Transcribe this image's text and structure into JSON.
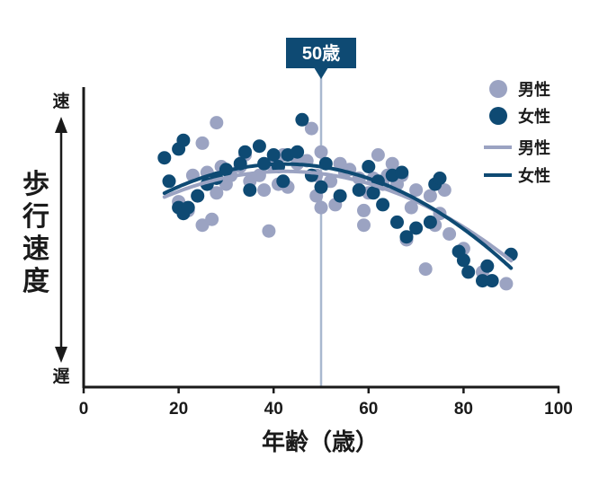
{
  "chart_data": {
    "type": "scatter",
    "xlabel": "年齢（歳）",
    "ylabel": "歩行速度",
    "y_top_label": "速",
    "y_bottom_label": "遅",
    "xlim": [
      0,
      100
    ],
    "ylim": [
      0,
      10
    ],
    "xticks": [
      "0",
      "20",
      "40",
      "60",
      "80",
      "100"
    ],
    "grid": false,
    "legend_position": "top-right",
    "annotation": {
      "label": "50歳",
      "x": 50
    },
    "colors": {
      "male": "#9ba3c2",
      "female": "#0e4a73",
      "annotation": "#0e4a73",
      "vline": "#a9b8cf",
      "axis": "#1a1a1a"
    },
    "series": [
      {
        "name": "男性",
        "kind": "points",
        "points": [
          [
            20,
            6.3
          ],
          [
            22,
            6.0
          ],
          [
            23,
            7.2
          ],
          [
            24,
            6.5
          ],
          [
            25,
            5.5
          ],
          [
            25,
            8.3
          ],
          [
            26,
            7.3
          ],
          [
            27,
            5.7
          ],
          [
            28,
            9.0
          ],
          [
            28,
            6.6
          ],
          [
            29,
            7.5
          ],
          [
            30,
            6.9
          ],
          [
            31,
            7.2
          ],
          [
            33,
            7.5
          ],
          [
            34,
            7.9
          ],
          [
            35,
            7.0
          ],
          [
            37,
            7.2
          ],
          [
            38,
            6.7
          ],
          [
            39,
            5.3
          ],
          [
            40,
            7.5
          ],
          [
            41,
            6.9
          ],
          [
            42,
            7.9
          ],
          [
            43,
            6.8
          ],
          [
            45,
            7.6
          ],
          [
            47,
            7.7
          ],
          [
            48,
            8.8
          ],
          [
            49,
            6.5
          ],
          [
            49,
            7.2
          ],
          [
            50,
            6.1
          ],
          [
            50,
            8.0
          ],
          [
            52,
            7.0
          ],
          [
            53,
            6.2
          ],
          [
            54,
            7.6
          ],
          [
            55,
            7.3
          ],
          [
            56,
            7.4
          ],
          [
            58,
            7.1
          ],
          [
            59,
            6.0
          ],
          [
            59,
            5.5
          ],
          [
            60,
            6.6
          ],
          [
            61,
            7.1
          ],
          [
            62,
            7.9
          ],
          [
            63,
            6.9
          ],
          [
            64,
            7.2
          ],
          [
            65,
            7.6
          ],
          [
            66,
            6.9
          ],
          [
            67,
            7.2
          ],
          [
            68,
            5.0
          ],
          [
            69,
            6.1
          ],
          [
            70,
            6.7
          ],
          [
            72,
            4.0
          ],
          [
            73,
            6.5
          ],
          [
            74,
            5.5
          ],
          [
            75,
            5.9
          ],
          [
            76,
            6.7
          ],
          [
            77,
            5.2
          ],
          [
            80,
            4.7
          ],
          [
            84,
            3.9
          ],
          [
            86,
            3.6
          ],
          [
            89,
            3.5
          ]
        ]
      },
      {
        "name": "女性",
        "kind": "points",
        "points": [
          [
            17,
            7.8
          ],
          [
            18,
            7.0
          ],
          [
            20,
            6.1
          ],
          [
            20,
            8.1
          ],
          [
            21,
            8.4
          ],
          [
            21,
            5.9
          ],
          [
            22,
            6.1
          ],
          [
            24,
            6.5
          ],
          [
            26,
            6.9
          ],
          [
            28,
            7.1
          ],
          [
            30,
            7.4
          ],
          [
            33,
            7.6
          ],
          [
            34,
            8.0
          ],
          [
            35,
            6.7
          ],
          [
            37,
            8.2
          ],
          [
            38,
            7.6
          ],
          [
            40,
            7.9
          ],
          [
            41,
            7.5
          ],
          [
            42,
            7.0
          ],
          [
            43,
            7.9
          ],
          [
            45,
            8.0
          ],
          [
            46,
            9.1
          ],
          [
            48,
            7.2
          ],
          [
            50,
            6.8
          ],
          [
            51,
            7.6
          ],
          [
            54,
            6.5
          ],
          [
            58,
            6.7
          ],
          [
            60,
            7.5
          ],
          [
            61,
            6.6
          ],
          [
            62,
            7.0
          ],
          [
            63,
            6.2
          ],
          [
            65,
            7.2
          ],
          [
            66,
            5.6
          ],
          [
            67,
            7.3
          ],
          [
            68,
            5.1
          ],
          [
            70,
            5.4
          ],
          [
            73,
            5.6
          ],
          [
            74,
            6.9
          ],
          [
            75,
            7.1
          ],
          [
            79,
            4.6
          ],
          [
            80,
            4.3
          ],
          [
            81,
            3.9
          ],
          [
            84,
            3.6
          ],
          [
            85,
            4.1
          ],
          [
            86,
            3.6
          ],
          [
            90,
            4.5
          ]
        ]
      },
      {
        "name": "男性",
        "kind": "line",
        "fit": [
          -0.00135,
          0.1147,
          4.9
        ],
        "x_range": [
          17,
          90
        ]
      },
      {
        "name": "女性",
        "kind": "line",
        "fit": [
          -0.00156,
          0.1319,
          4.8
        ],
        "x_range": [
          17,
          90
        ]
      }
    ]
  }
}
